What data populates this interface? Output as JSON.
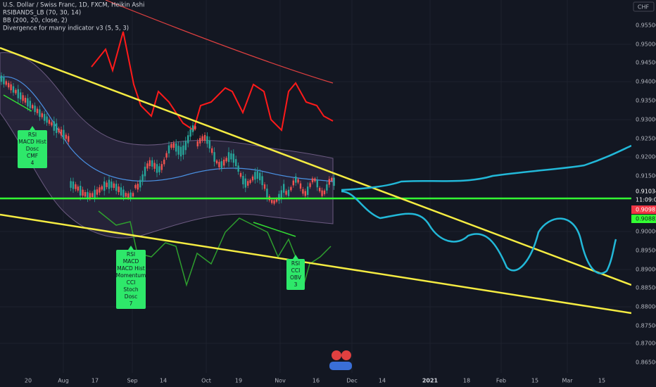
{
  "legend": [
    "U.S. Dollar / Swiss Franc, 1D, FXCM, Heikin Ashi",
    "RSIBANDS_LB (70, 30, 14)",
    "BB (200, 20, close, 2)",
    "Divergence for many indicator v3 (5, 5, 3)"
  ],
  "currency": "CHF",
  "price_axis": [
    "0.95500",
    "0.95000",
    "0.94500",
    "0.94000",
    "0.93500",
    "0.93000",
    "0.92500",
    "0.92000",
    "0.91500",
    "0.90000",
    "0.89500",
    "0.89000",
    "0.88500",
    "0.88000",
    "0.87500",
    "0.87000",
    "0.86500"
  ],
  "price_tags": {
    "last": "0.91034",
    "countdown": "11:09:02",
    "red": "0.90981",
    "green": "0.90882"
  },
  "time_axis": [
    "20",
    "Aug",
    "17",
    "Sep",
    "14",
    "Oct",
    "19",
    "Nov",
    "16",
    "Dec",
    "14",
    "2021",
    "18",
    "Feb",
    "15",
    "Mar",
    "15"
  ],
  "signals": [
    {
      "lines": [
        "RSI",
        "MACD Hist",
        "Dosc",
        "CMF",
        "4"
      ]
    },
    {
      "lines": [
        "RSI",
        "MACD",
        "MACD Hist",
        "Momentum",
        "CCI",
        "Stoch",
        "Dosc",
        "7"
      ]
    },
    {
      "lines": [
        "RSI",
        "CCI",
        "OBV",
        "3"
      ]
    }
  ]
}
